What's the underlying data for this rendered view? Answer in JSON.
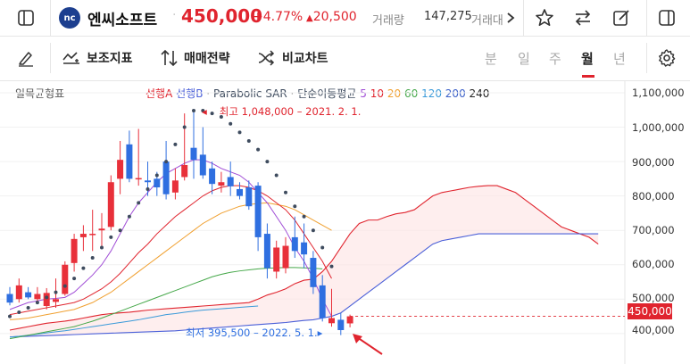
{
  "header": {
    "stock_name": "엔씨소프트",
    "logo_text": "nc",
    "price": "450,000",
    "change_pct": "+4.77%",
    "change_amount": "20,500",
    "volume_label": "거래량",
    "volume_value": "147,275",
    "amount_label": "거래대"
  },
  "toolbar": {
    "indicators_label": "보조지표",
    "strategy_label": "매매전략",
    "compare_label": "비교차트",
    "periods": [
      "분",
      "일",
      "주",
      "월",
      "년"
    ],
    "selected_period": "월"
  },
  "chart": {
    "indicator_name": "일목균형표",
    "legend": {
      "span_a": "선행A",
      "span_b": "선행B",
      "sep1": "·",
      "psar": "Parabolic SAR",
      "sep2": "·",
      "ma_label": "단순이동평균",
      "ma_periods": [
        "5",
        "10",
        "20",
        "60",
        "120",
        "200",
        "240"
      ]
    },
    "y_axis_labels": [
      "1,100,000",
      "1,000,000",
      "900,000",
      "800,000",
      "700,000",
      "600,000",
      "500,000",
      "400,000"
    ],
    "current_price_tag": "450,000",
    "high_annotation": "최고 1,048,000 – 2021. 2. 1.",
    "low_annotation": "최저 395,500 – 2022. 5. 1.",
    "colors": {
      "up": "#e8303a",
      "down": "#2f6fe0",
      "span_a": "#e0242e",
      "span_b": "#4a5fd8",
      "psar": "#3e4b5e"
    }
  },
  "chart_data": {
    "type": "candlestick",
    "unit": "KRW",
    "ylim": [
      380000,
      1120000
    ],
    "y_ticks": [
      1100000,
      1000000,
      900000,
      800000,
      700000,
      600000,
      500000,
      400000
    ],
    "candles": [
      [
        515000,
        535000,
        482000,
        490000
      ],
      [
        500000,
        560000,
        490000,
        540000
      ],
      [
        520000,
        535000,
        500000,
        505000
      ],
      [
        500000,
        535000,
        488000,
        515000
      ],
      [
        480000,
        532000,
        470000,
        518000
      ],
      [
        492000,
        560000,
        475000,
        500000
      ],
      [
        515000,
        610000,
        510000,
        600000
      ],
      [
        605000,
        690000,
        580000,
        675000
      ],
      [
        680000,
        715000,
        640000,
        690000
      ],
      [
        690000,
        760000,
        640000,
        690000
      ],
      [
        700000,
        750000,
        650000,
        705000
      ],
      [
        710000,
        860000,
        700000,
        840000
      ],
      [
        850000,
        960000,
        805000,
        905000
      ],
      [
        950000,
        990000,
        840000,
        850000
      ],
      [
        850000,
        995000,
        830000,
        852000
      ],
      [
        845000,
        900000,
        800000,
        840000
      ],
      [
        850000,
        870000,
        800000,
        825000
      ],
      [
        900000,
        960000,
        790000,
        805000
      ],
      [
        810000,
        880000,
        790000,
        845000
      ],
      [
        855000,
        1040000,
        845000,
        890000
      ],
      [
        940000,
        1048000,
        850000,
        905000
      ],
      [
        920000,
        1000000,
        850000,
        860000
      ],
      [
        880000,
        900000,
        805000,
        835000
      ],
      [
        830000,
        870000,
        810000,
        840000
      ],
      [
        855000,
        900000,
        800000,
        828000
      ],
      [
        820000,
        840000,
        790000,
        800000
      ],
      [
        825000,
        845000,
        760000,
        770000
      ],
      [
        830000,
        840000,
        640000,
        680000
      ],
      [
        690000,
        720000,
        560000,
        590000
      ],
      [
        580000,
        670000,
        560000,
        650000
      ],
      [
        590000,
        680000,
        575000,
        655000
      ],
      [
        680000,
        740000,
        620000,
        640000
      ],
      [
        665000,
        720000,
        590000,
        630000
      ],
      [
        620000,
        640000,
        515000,
        535000
      ],
      [
        540000,
        570000,
        435000,
        445000
      ],
      [
        430000,
        530000,
        420000,
        445000
      ],
      [
        440000,
        460000,
        395500,
        410000
      ],
      [
        429500,
        455000,
        418000,
        450000
      ]
    ],
    "psar": [
      450000,
      462000,
      475000,
      490000,
      505000,
      520000,
      538000,
      560000,
      590000,
      620000,
      650000,
      680000,
      700000,
      740000,
      780000,
      820000,
      860000,
      900000,
      950000,
      1000000,
      1048000,
      1048000,
      1040000,
      1030000,
      1010000,
      985000,
      960000,
      935000,
      900000,
      860000,
      810000,
      770000,
      740000,
      700000,
      650000,
      595000
    ],
    "ma_short": [
      470000,
      480000,
      490000,
      495000,
      500000,
      502000,
      505000,
      520000,
      545000,
      570000,
      600000,
      640000,
      690000,
      740000,
      780000,
      810000,
      840000,
      865000,
      880000,
      895000,
      905000,
      905000,
      895000,
      880000,
      870000,
      860000,
      840000,
      810000,
      780000,
      740000,
      700000,
      650000,
      610000,
      560000,
      500000,
      450000
    ],
    "ma_mid": [
      455000,
      460000,
      465000,
      470000,
      475000,
      480000,
      485000,
      490000,
      500000,
      515000,
      530000,
      550000,
      575000,
      605000,
      635000,
      660000,
      690000,
      715000,
      740000,
      760000,
      780000,
      800000,
      815000,
      825000,
      830000,
      830000,
      825000,
      815000,
      800000,
      780000,
      760000,
      730000,
      690000,
      650000,
      610000,
      560000
    ],
    "ma_long": [
      440000,
      442000,
      445000,
      450000,
      455000,
      460000,
      465000,
      470000,
      480000,
      490000,
      505000,
      520000,
      540000,
      560000,
      580000,
      600000,
      620000,
      640000,
      660000,
      680000,
      700000,
      720000,
      735000,
      750000,
      760000,
      770000,
      775000,
      778000,
      780000,
      775000,
      770000,
      760000,
      745000,
      730000,
      715000,
      700000
    ],
    "ma_60": [
      385000,
      390000,
      395000,
      400000,
      405000,
      410000,
      415000,
      420000,
      428000,
      436000,
      445000,
      455000,
      465000,
      475000,
      485000,
      495000,
      505000,
      515000,
      525000,
      535000,
      545000,
      555000,
      565000,
      572000,
      578000,
      582000,
      585000,
      588000,
      590000,
      591000,
      592000,
      592000,
      591000,
      590000,
      588000
    ],
    "ma_120": [
      390000,
      392000,
      395000,
      398000,
      402000,
      405000,
      408000,
      412000,
      416000,
      420000,
      424000,
      428000,
      432000,
      436000,
      440000,
      445000,
      450000,
      455000,
      458000,
      462000,
      465000,
      468000,
      470000,
      472000,
      474000,
      476000,
      478000,
      480000
    ],
    "span_a": [
      410000,
      415000,
      420000,
      425000,
      430000,
      433000,
      436000,
      440000,
      445000,
      450000,
      455000,
      458000,
      460000,
      462000,
      465000,
      468000,
      470000,
      472000,
      474000,
      476000,
      478000,
      480000,
      482000,
      484000,
      486000,
      488000,
      490000,
      500000,
      512000,
      520000,
      530000,
      545000,
      555000,
      558000,
      580000,
      610000,
      650000,
      690000,
      720000,
      730000,
      730000,
      740000,
      748000,
      752000,
      760000,
      780000,
      800000,
      810000,
      815000,
      820000,
      825000,
      828000,
      830000,
      830000,
      820000,
      810000,
      790000,
      770000,
      750000,
      730000,
      710000,
      700000,
      690000,
      680000,
      660000
    ],
    "span_b": [
      390000,
      391000,
      392000,
      393000,
      394000,
      395000,
      396000,
      397000,
      398000,
      399000,
      400000,
      401000,
      402000,
      403000,
      404000,
      405000,
      406000,
      407000,
      408000,
      410000,
      412000,
      414000,
      416000,
      418000,
      420000,
      422000,
      424000,
      426000,
      428000,
      430000,
      432000,
      435000,
      438000,
      440000,
      445000,
      450000,
      460000,
      480000,
      500000,
      520000,
      540000,
      560000,
      580000,
      600000,
      620000,
      640000,
      660000,
      670000,
      675000,
      680000,
      685000,
      690000,
      690000,
      690000,
      690000,
      690000,
      690000,
      690000,
      690000,
      690000,
      690000,
      690000,
      690000,
      690000,
      690000
    ]
  }
}
